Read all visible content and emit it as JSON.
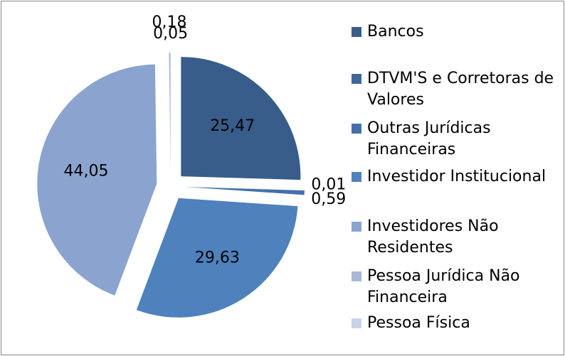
{
  "chart_data": {
    "type": "pie",
    "categories": [
      "Bancos",
      "DTVM'S e Corretoras de Valores",
      "Outras Jurídicas Financeiras",
      "Investidor Institucional",
      "Investidores Não Residentes",
      "Pessoa Jurídica Não Financeira",
      "Pessoa Física"
    ],
    "values": [
      25.47,
      0.01,
      0.59,
      29.63,
      44.05,
      0.18,
      0.05
    ],
    "value_labels": [
      "25,47",
      "0,01",
      "0,59",
      "29,63",
      "44,05",
      "0,18",
      "0,05"
    ],
    "colors": [
      "#385d8a",
      "#3e6699",
      "#4470ab",
      "#4f81bd",
      "#8aa4cf",
      "#a7b9da",
      "#c8d3e8"
    ],
    "legend": "right"
  }
}
